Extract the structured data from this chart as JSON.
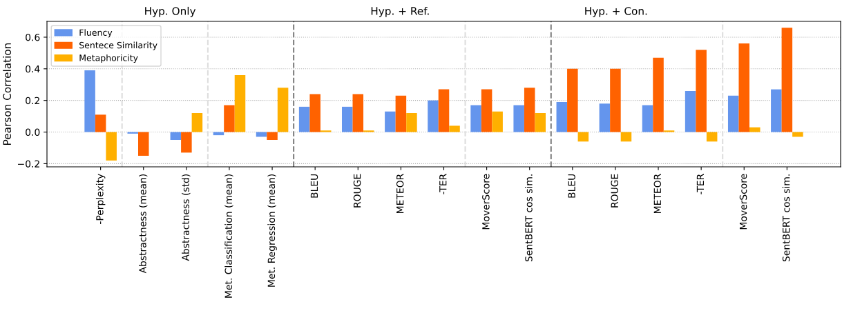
{
  "chart_data": {
    "type": "bar",
    "ylabel": "Pearson Correlation",
    "categories": [
      "-Perplexity",
      "Abstractness (mean)",
      "Abstractness (std)",
      "Met. Classification (mean)",
      "Met. Regression (mean)",
      "BLEU",
      "ROUGE",
      "METEOR",
      "-TER",
      "MoverScore",
      "SentBERT cos sim.",
      "BLEU",
      "ROUGE",
      "METEOR",
      "-TER",
      "MoverScore",
      "SentBERT cos sim."
    ],
    "series": [
      {
        "name": "Fluency",
        "color": "#6495ed",
        "values": [
          0.39,
          -0.01,
          -0.05,
          -0.02,
          -0.03,
          0.16,
          0.16,
          0.13,
          0.2,
          0.17,
          0.17,
          0.19,
          0.18,
          0.17,
          0.26,
          0.23,
          0.27
        ]
      },
      {
        "name": "Sentece Similarity",
        "color": "#ff6200",
        "values": [
          0.11,
          -0.15,
          -0.13,
          0.17,
          -0.05,
          0.24,
          0.24,
          0.23,
          0.27,
          0.27,
          0.28,
          0.4,
          0.4,
          0.47,
          0.52,
          0.56,
          0.66
        ]
      },
      {
        "name": "Metaphoricity",
        "color": "#ffb000",
        "values": [
          -0.18,
          0.0,
          0.12,
          0.36,
          0.28,
          0.01,
          0.01,
          0.12,
          0.04,
          0.13,
          0.12,
          -0.06,
          -0.06,
          0.01,
          -0.06,
          0.03,
          -0.03
        ]
      }
    ],
    "ylim": [
      -0.22,
      0.7
    ],
    "yticks": [
      {
        "value": -0.2,
        "label": "−0.2"
      },
      {
        "value": 0,
        "label": "0.0"
      },
      {
        "value": 0.2,
        "label": "0.2"
      },
      {
        "value": 0.4,
        "label": "0.4"
      },
      {
        "value": 0.6,
        "label": "0.6"
      }
    ],
    "annotations": [
      "Hyp. Only",
      "Hyp. + Ref.",
      "Hyp. + Con."
    ],
    "grid": "y",
    "legend": "top left"
  }
}
